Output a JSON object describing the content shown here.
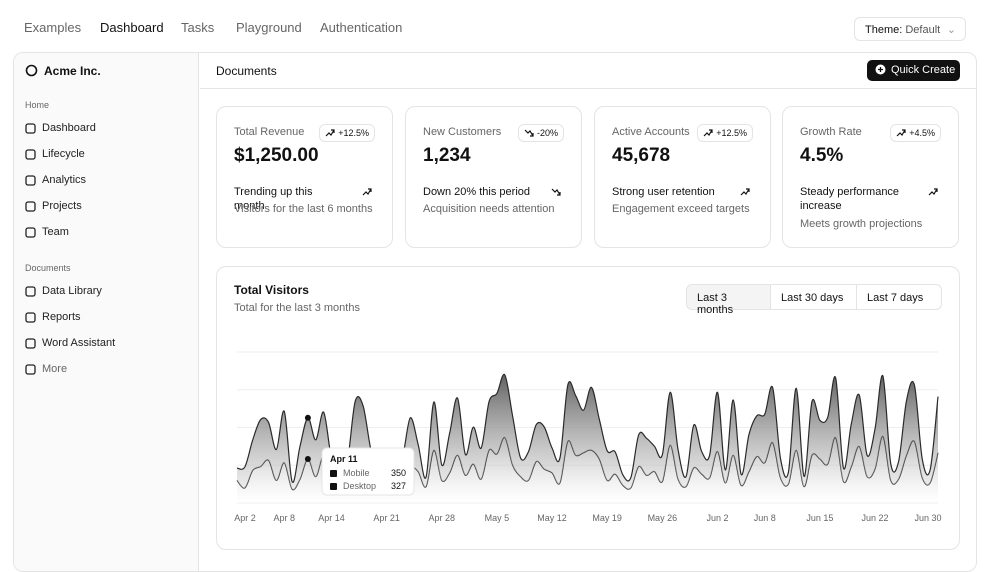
{
  "nav": {
    "links": [
      "Examples",
      "Dashboard",
      "Tasks",
      "Playground",
      "Authentication"
    ],
    "theme_label": "Theme:",
    "theme_value": "Default"
  },
  "sidebar": {
    "brand": "Acme Inc.",
    "groups": [
      {
        "label": "Home",
        "items": [
          "Dashboard",
          "Lifecycle",
          "Analytics",
          "Projects",
          "Team"
        ]
      },
      {
        "label": "Documents",
        "items": [
          "Data Library",
          "Reports",
          "Word Assistant",
          "More"
        ]
      }
    ]
  },
  "header": {
    "title": "Documents",
    "button": "Quick Create"
  },
  "cards": [
    {
      "label": "Total Revenue",
      "badge": "+12.5%",
      "value": "$1,250.00",
      "trend": "Trending up this month",
      "note": "Visitors for the last 6 months"
    },
    {
      "label": "New Customers",
      "badge": "-20%",
      "value": "1,234",
      "trend": "Down 20% this period",
      "note": "Acquisition needs attention"
    },
    {
      "label": "Active Accounts",
      "badge": "+12.5%",
      "value": "45,678",
      "trend": "Strong user retention",
      "note": "Engagement exceed targets"
    },
    {
      "label": "Growth Rate",
      "badge": "+4.5%",
      "value": "4.5%",
      "trend": "Steady performance increase",
      "note": "Meets growth projections"
    }
  ],
  "chart_card": {
    "title": "Total Visitors",
    "subtitle": "Total for the last 3 months",
    "ranges": [
      "Last 3 months",
      "Last 30 days",
      "Last 7 days"
    ],
    "tooltip_title": "Apr 11"
  },
  "chart_data": {
    "type": "area",
    "stacked": true,
    "grid": true,
    "ylim": [
      0,
      1200
    ],
    "categories": [
      "Apr 2",
      null,
      null,
      null,
      null,
      null,
      "Apr 8",
      null,
      null,
      null,
      null,
      null,
      "Apr 14",
      null,
      null,
      null,
      null,
      null,
      null,
      "Apr 21",
      null,
      null,
      null,
      null,
      null,
      null,
      "Apr 28",
      null,
      null,
      null,
      null,
      null,
      null,
      "May 5",
      null,
      null,
      null,
      null,
      null,
      null,
      "May 12",
      null,
      null,
      null,
      null,
      null,
      null,
      "May 19",
      null,
      null,
      null,
      null,
      null,
      null,
      "May 26",
      null,
      null,
      null,
      null,
      null,
      null,
      "Jun 2",
      null,
      null,
      null,
      null,
      null,
      "Jun 8",
      null,
      null,
      null,
      null,
      null,
      null,
      "Jun 15",
      null,
      null,
      null,
      null,
      null,
      null,
      "Jun 22",
      null,
      null,
      null,
      null,
      null,
      null,
      null,
      "Jun 30"
    ],
    "series": [
      {
        "name": "Mobile",
        "color": "#3f3f3f",
        "values": [
          180,
          120,
          260,
          290,
          340,
          180,
          320,
          110,
          190,
          350,
          210,
          380,
          220,
          170,
          190,
          360,
          410,
          180,
          150,
          200,
          170,
          230,
          290,
          250,
          130,
          420,
          180,
          240,
          380,
          220,
          310,
          190,
          420,
          390,
          520,
          300,
          210,
          180,
          330,
          270,
          240,
          160,
          490,
          380,
          400,
          420,
          350,
          180,
          230,
          140,
          120,
          290,
          220,
          250,
          170,
          460,
          190,
          130,
          280,
          230,
          200,
          410,
          160,
          380,
          140,
          250,
          370,
          320,
          480,
          200,
          150,
          420,
          130,
          380,
          350,
          310,
          520,
          170,
          290,
          450,
          210,
          270,
          530,
          180,
          190,
          380,
          490,
          200,
          160,
          400
        ]
      },
      {
        "name": "Desktop",
        "color": "#2a2a2a",
        "values": [
          97,
          167,
          242,
          373,
          301,
          245,
          409,
          59,
          261,
          327,
          292,
          342,
          137,
          120,
          138,
          446,
          364,
          243,
          89,
          137,
          224,
          138,
          387,
          215,
          75,
          383,
          122,
          315,
          454,
          165,
          293,
          247,
          385,
          481,
          498,
          388,
          149,
          227,
          293,
          335,
          197,
          197,
          448,
          473,
          338,
          499,
          315,
          235,
          177,
          82,
          81,
          252,
          294,
          201,
          213,
          420,
          233,
          78,
          340,
          178,
          178,
          470,
          103,
          439,
          88,
          294,
          323,
          385,
          438,
          155,
          92,
          492,
          81,
          426,
          307,
          371,
          475,
          107,
          341,
          408,
          169,
          317,
          480,
          132,
          141,
          434,
          448,
          149,
          103,
          446
        ]
      }
    ]
  }
}
